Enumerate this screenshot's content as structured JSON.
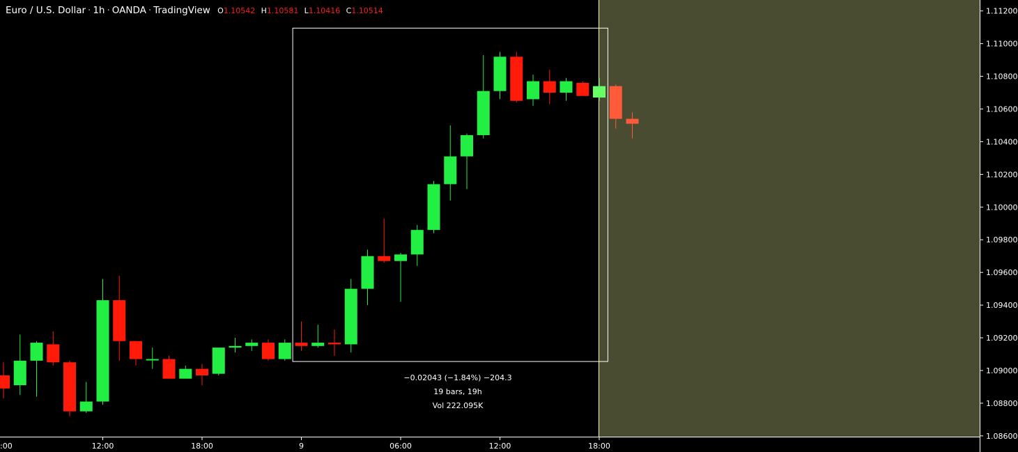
{
  "header": {
    "symbol": "Euro / U.S. Dollar",
    "interval": "1h",
    "exchange": "OANDA",
    "platform": "TradingView",
    "o_key": "O",
    "o_val": "1.10542",
    "h_key": "H",
    "h_val": "1.10581",
    "l_key": "L",
    "l_val": "1.10416",
    "c_key": "C",
    "c_val": "1.10514"
  },
  "colors": {
    "up": "#22ee44",
    "down": "#ff1a0a",
    "down_light": "#ff5a3a",
    "up_light": "#66ff66",
    "future_zone": "#4a4c32",
    "measure_box": "#ffffff",
    "vline": "#ffff99"
  },
  "measure": {
    "line1": "−0.02043 (−1.84%) −204.3",
    "line2": "19 bars, 19h",
    "line3": "Vol 222.095K"
  },
  "chart_data": {
    "type": "candlestick",
    "title": "Euro / U.S. Dollar · 1h · OANDA · TradingView",
    "y_ticks": [
      "1.11200",
      "1.11000",
      "1.10800",
      "1.10600",
      "1.10400",
      "1.10200",
      "1.10000",
      "1.09800",
      "1.09600",
      "1.09400",
      "1.09200",
      "1.09000",
      "1.08800",
      "1.08600"
    ],
    "ylim": [
      1.08595,
      1.11267
    ],
    "x_ticks": [
      {
        "label": ":00",
        "bar": -0.5
      },
      {
        "label": "12:00",
        "bar": 6
      },
      {
        "label": "18:00",
        "bar": 12
      },
      {
        "label": "9",
        "bar": 18
      },
      {
        "label": "06:00",
        "bar": 24
      },
      {
        "label": "12:00",
        "bar": 30
      },
      {
        "label": "18:00",
        "bar": 36
      }
    ],
    "candles": [
      {
        "o": 1.0897,
        "h": 1.0905,
        "l": 1.0883,
        "c": 1.0889,
        "style": "down"
      },
      {
        "o": 1.0891,
        "h": 1.0922,
        "l": 1.0885,
        "c": 1.0906,
        "style": "up"
      },
      {
        "o": 1.0906,
        "h": 1.0918,
        "l": 1.0884,
        "c": 1.0917,
        "style": "up"
      },
      {
        "o": 1.0916,
        "h": 1.0924,
        "l": 1.0903,
        "c": 1.0905,
        "style": "down"
      },
      {
        "o": 1.0905,
        "h": 1.0906,
        "l": 1.0872,
        "c": 1.0875,
        "style": "down"
      },
      {
        "o": 1.0875,
        "h": 1.0893,
        "l": 1.0874,
        "c": 1.0881,
        "style": "up"
      },
      {
        "o": 1.0881,
        "h": 1.0956,
        "l": 1.0879,
        "c": 1.0943,
        "style": "up"
      },
      {
        "o": 1.0943,
        "h": 1.0958,
        "l": 1.0906,
        "c": 1.0918,
        "style": "down"
      },
      {
        "o": 1.0918,
        "h": 1.0918,
        "l": 1.0903,
        "c": 1.0907,
        "style": "down"
      },
      {
        "o": 1.0907,
        "h": 1.0914,
        "l": 1.0901,
        "c": 1.0907,
        "style": "up"
      },
      {
        "o": 1.0907,
        "h": 1.0909,
        "l": 1.0895,
        "c": 1.0895,
        "style": "down"
      },
      {
        "o": 1.0895,
        "h": 1.0903,
        "l": 1.0895,
        "c": 1.0901,
        "style": "up"
      },
      {
        "o": 1.0901,
        "h": 1.0904,
        "l": 1.0891,
        "c": 1.0897,
        "style": "down"
      },
      {
        "o": 1.0898,
        "h": 1.0913,
        "l": 1.0897,
        "c": 1.0914,
        "style": "up"
      },
      {
        "o": 1.0914,
        "h": 1.092,
        "l": 1.0911,
        "c": 1.0915,
        "style": "up"
      },
      {
        "o": 1.0915,
        "h": 1.0919,
        "l": 1.0912,
        "c": 1.0917,
        "style": "up"
      },
      {
        "o": 1.0917,
        "h": 1.0919,
        "l": 1.0906,
        "c": 1.0907,
        "style": "down"
      },
      {
        "o": 1.0907,
        "h": 1.0919,
        "l": 1.0906,
        "c": 1.0917,
        "style": "up"
      },
      {
        "o": 1.0917,
        "h": 1.093,
        "l": 1.0912,
        "c": 1.0915,
        "style": "down"
      },
      {
        "o": 1.0915,
        "h": 1.0928,
        "l": 1.0914,
        "c": 1.0917,
        "style": "up"
      },
      {
        "o": 1.0917,
        "h": 1.0925,
        "l": 1.0909,
        "c": 1.0916,
        "style": "down"
      },
      {
        "o": 1.0916,
        "h": 1.0956,
        "l": 1.0911,
        "c": 1.095,
        "style": "up"
      },
      {
        "o": 1.095,
        "h": 1.0974,
        "l": 1.094,
        "c": 1.097,
        "style": "up"
      },
      {
        "o": 1.097,
        "h": 1.0993,
        "l": 1.0966,
        "c": 1.0967,
        "style": "down"
      },
      {
        "o": 1.0967,
        "h": 1.0972,
        "l": 1.0942,
        "c": 1.0971,
        "style": "up"
      },
      {
        "o": 1.0971,
        "h": 1.0989,
        "l": 1.0964,
        "c": 1.0986,
        "style": "up"
      },
      {
        "o": 1.0986,
        "h": 1.1016,
        "l": 1.0984,
        "c": 1.1014,
        "style": "up"
      },
      {
        "o": 1.1014,
        "h": 1.105,
        "l": 1.1004,
        "c": 1.1031,
        "style": "up"
      },
      {
        "o": 1.1031,
        "h": 1.1045,
        "l": 1.1011,
        "c": 1.1044,
        "style": "up"
      },
      {
        "o": 1.1044,
        "h": 1.1093,
        "l": 1.1042,
        "c": 1.1071,
        "style": "up"
      },
      {
        "o": 1.1071,
        "h": 1.1095,
        "l": 1.1066,
        "c": 1.1092,
        "style": "up"
      },
      {
        "o": 1.1092,
        "h": 1.1095,
        "l": 1.1064,
        "c": 1.1065,
        "style": "down"
      },
      {
        "o": 1.1066,
        "h": 1.1081,
        "l": 1.1062,
        "c": 1.1077,
        "style": "up"
      },
      {
        "o": 1.1077,
        "h": 1.1084,
        "l": 1.1063,
        "c": 1.107,
        "style": "down"
      },
      {
        "o": 1.107,
        "h": 1.1079,
        "l": 1.1065,
        "c": 1.1077,
        "style": "up"
      },
      {
        "o": 1.1076,
        "h": 1.1077,
        "l": 1.1068,
        "c": 1.1068,
        "style": "down"
      },
      {
        "o": 1.1067,
        "h": 1.1079,
        "l": 1.1065,
        "c": 1.1074,
        "style": "up_light"
      },
      {
        "o": 1.1074,
        "h": 1.1075,
        "l": 1.1048,
        "c": 1.1054,
        "style": "down_light"
      },
      {
        "o": 1.1054,
        "h": 1.1058,
        "l": 1.1042,
        "c": 1.1051,
        "style": "down_light"
      }
    ],
    "measure_range": {
      "from_bar": 17.5,
      "to_bar": 36.5,
      "low": 1.09055,
      "high": 1.11095
    },
    "future_zone_from_bar": 36,
    "grid": false,
    "legend": "none"
  }
}
